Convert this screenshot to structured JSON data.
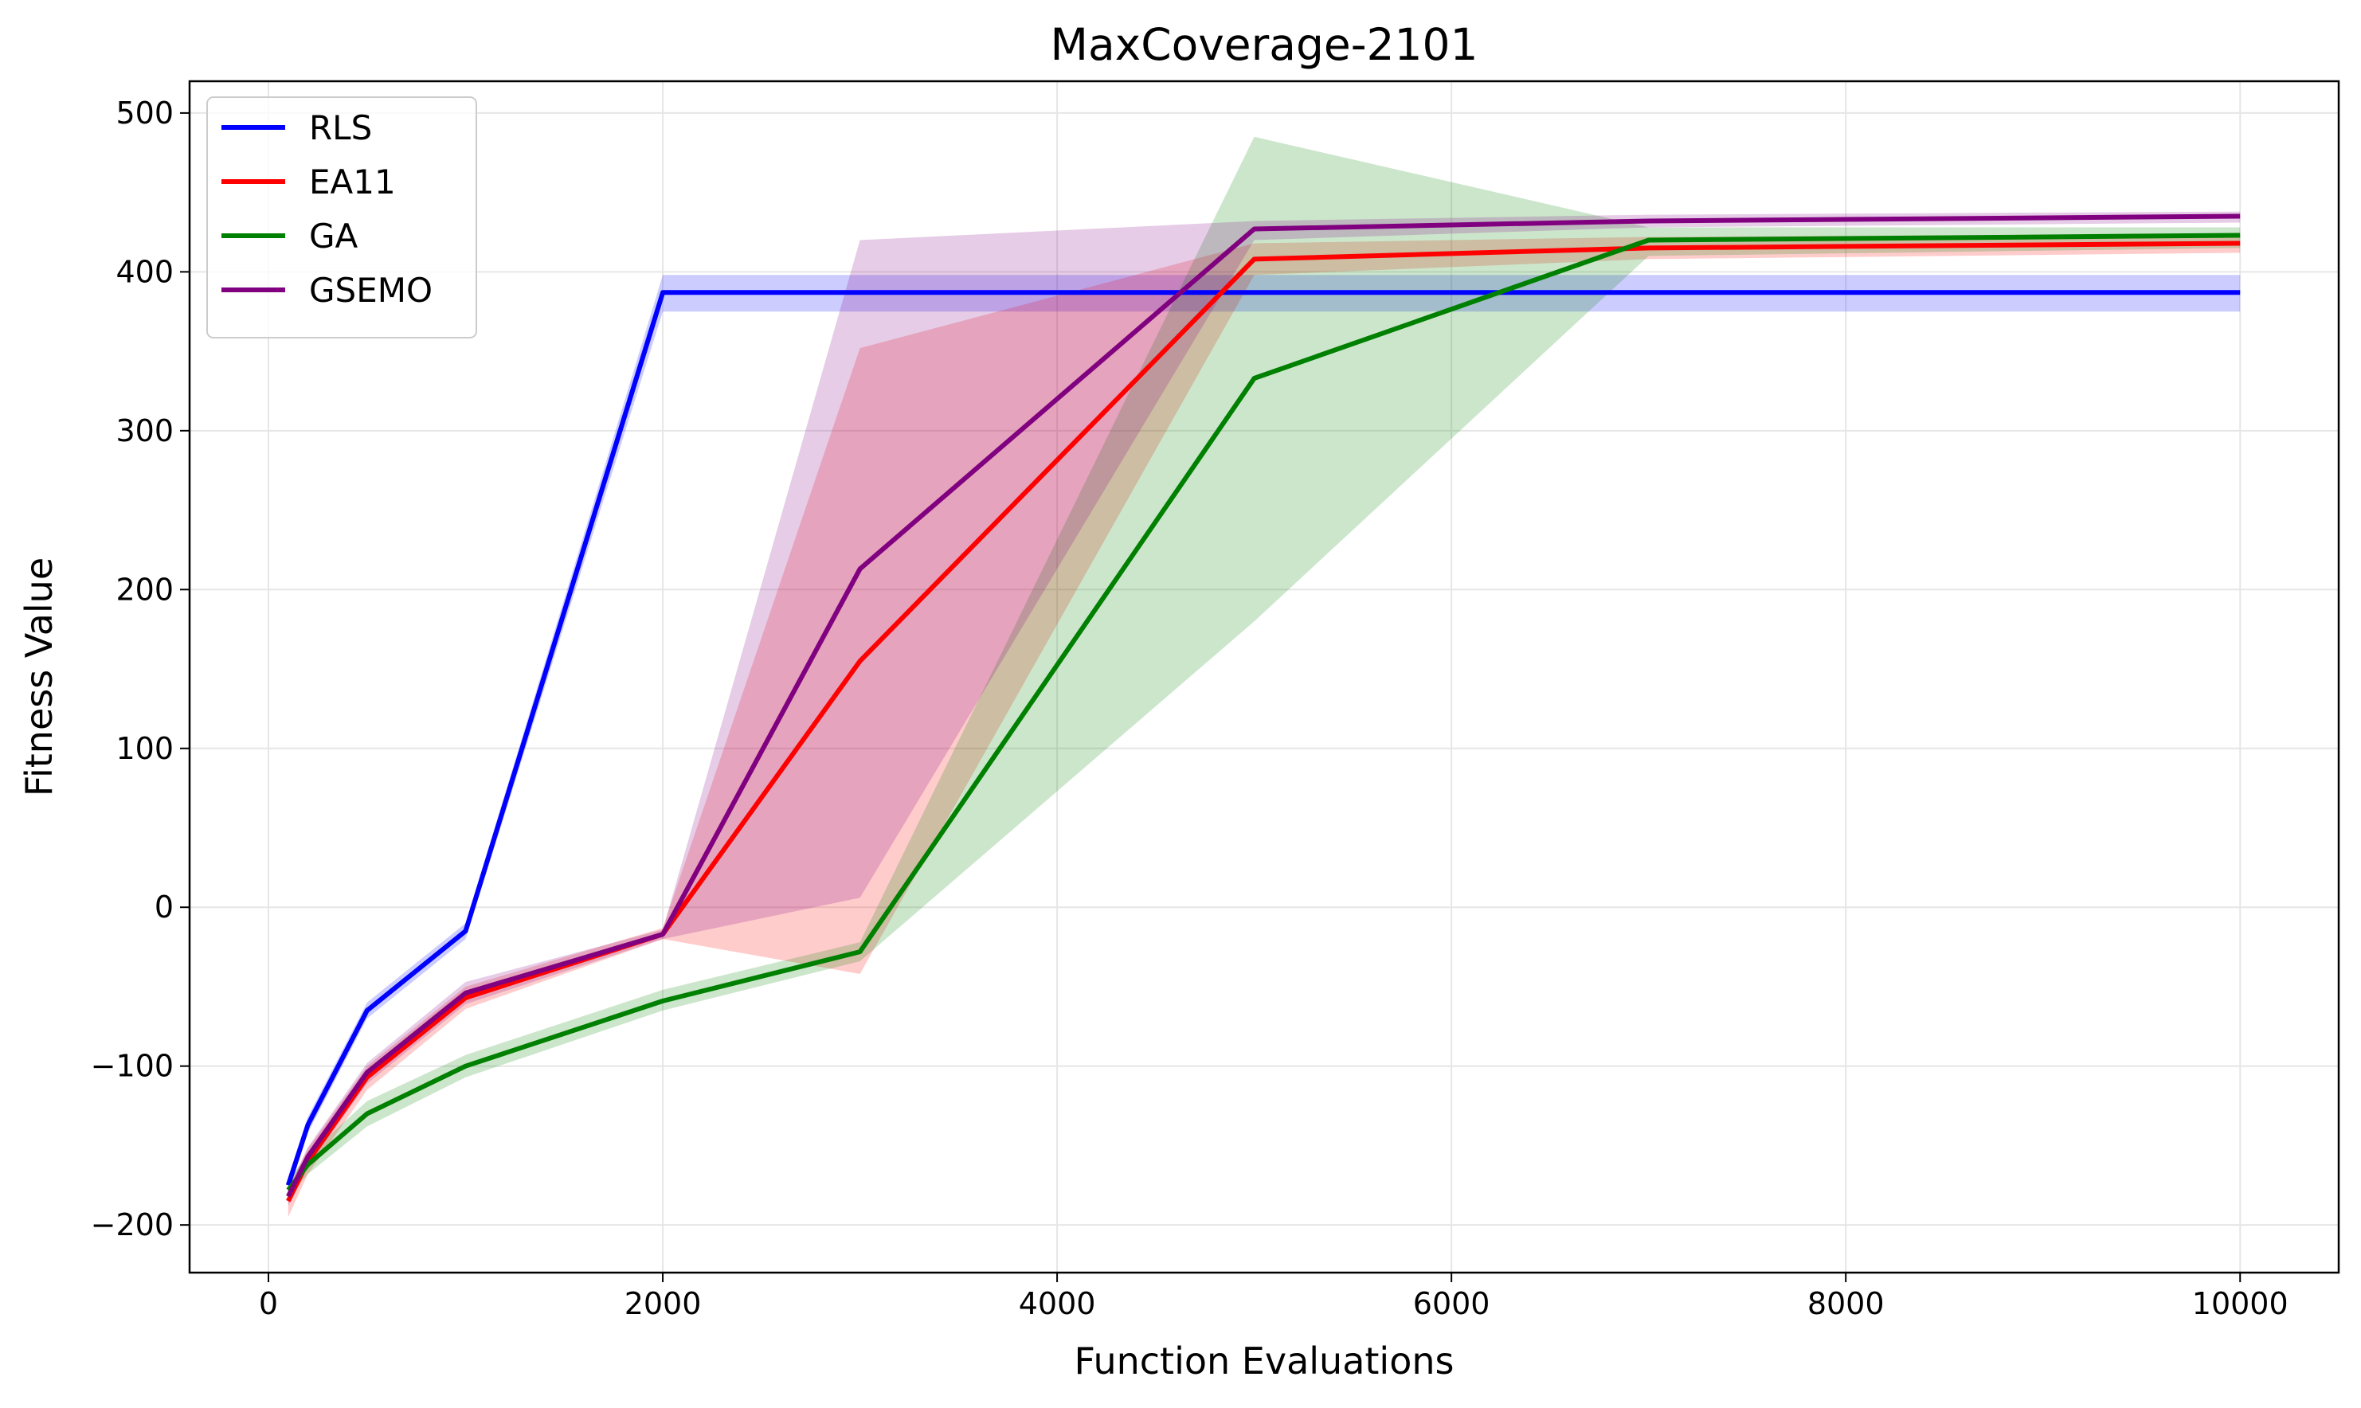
{
  "chart_data": {
    "type": "line",
    "title": "MaxCoverage-2101",
    "xlabel": "Function Evaluations",
    "ylabel": "Fitness Value",
    "xlim": [
      -400,
      10500
    ],
    "ylim": [
      -230,
      520
    ],
    "xticks": [
      0,
      2000,
      4000,
      6000,
      8000,
      10000
    ],
    "yticks": [
      -200,
      -100,
      0,
      100,
      200,
      300,
      400,
      500
    ],
    "xtick_labels": [
      "0",
      "2000",
      "4000",
      "6000",
      "8000",
      "10000"
    ],
    "ytick_labels": [
      "−200",
      "−100",
      "0",
      "100",
      "200",
      "300",
      "400",
      "500"
    ],
    "grid": true,
    "legend_position": "upper-left",
    "x": [
      100,
      200,
      500,
      1000,
      2000,
      3000,
      5000,
      7000,
      10000
    ],
    "series": [
      {
        "name": "RLS",
        "color": "#0000ff",
        "mean": [
          -175,
          -137,
          -65,
          -15,
          387,
          387,
          387,
          387,
          387
        ],
        "lower": [
          -180,
          -142,
          -70,
          -20,
          375,
          375,
          375,
          375,
          375
        ],
        "upper": [
          -170,
          -132,
          -60,
          -10,
          398,
          398,
          398,
          398,
          398
        ]
      },
      {
        "name": "EA11",
        "color": "#ff0000",
        "mean": [
          -185,
          -160,
          -107,
          -57,
          -17,
          155,
          408,
          415,
          418
        ],
        "lower": [
          -195,
          -168,
          -115,
          -64,
          -20,
          -42,
          398,
          408,
          412
        ],
        "upper": [
          -178,
          -152,
          -100,
          -50,
          -13,
          352,
          418,
          422,
          424
        ]
      },
      {
        "name": "GA",
        "color": "#008000",
        "mean": [
          -178,
          -162,
          -130,
          -100,
          -59,
          -28,
          333,
          420,
          423
        ],
        "lower": [
          -183,
          -168,
          -138,
          -107,
          -65,
          -34,
          180,
          410,
          415
        ],
        "upper": [
          -172,
          -156,
          -122,
          -93,
          -52,
          -22,
          485,
          428,
          428
        ]
      },
      {
        "name": "GSEMO",
        "color": "#800080",
        "mean": [
          -182,
          -157,
          -104,
          -54,
          -17,
          213,
          427,
          432,
          435
        ],
        "lower": [
          -188,
          -163,
          -111,
          -61,
          -20,
          6,
          420,
          428,
          431
        ],
        "upper": [
          -177,
          -151,
          -98,
          -47,
          -14,
          420,
          432,
          436,
          438
        ]
      }
    ]
  }
}
